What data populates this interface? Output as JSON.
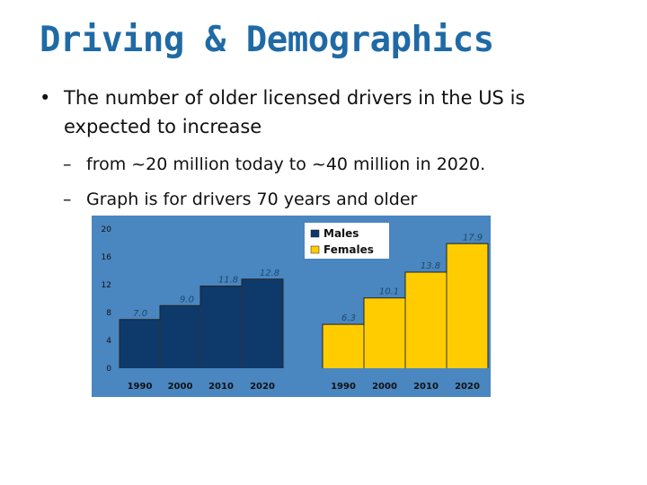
{
  "page": {
    "title": "Driving & Demographics",
    "bullet": "The number of older licensed drivers in the US is expected to increase",
    "sub1": "from ~20 million today to ~40 million in 2020.",
    "sub2": "Graph is for drivers 70 years and older"
  },
  "chart_data": {
    "type": "area",
    "title": "",
    "xlabel": "",
    "ylabel": "",
    "ylim": [
      0,
      20
    ],
    "yticks": [
      0,
      4,
      8,
      12,
      16,
      20
    ],
    "grid": false,
    "legend_position": "top-center",
    "legend": [
      {
        "name": "Males",
        "color": "#0d3a6b"
      },
      {
        "name": "Females",
        "color": "#ffcc00"
      }
    ],
    "series": [
      {
        "name": "Males",
        "color": "#0d3a6b",
        "categories": [
          "1990",
          "2000",
          "2010",
          "2020"
        ],
        "values": [
          7.0,
          9.0,
          11.8,
          12.8
        ],
        "labels": [
          "7.0",
          "9.0",
          "11.8",
          "12.8"
        ]
      },
      {
        "name": "Females",
        "color": "#ffcc00",
        "categories": [
          "1990",
          "2000",
          "2010",
          "2020"
        ],
        "values": [
          6.3,
          10.1,
          13.8,
          17.9
        ],
        "labels": [
          "6.3",
          "10.1",
          "13.8",
          "17.9"
        ]
      }
    ],
    "background": "#4a86c0"
  }
}
